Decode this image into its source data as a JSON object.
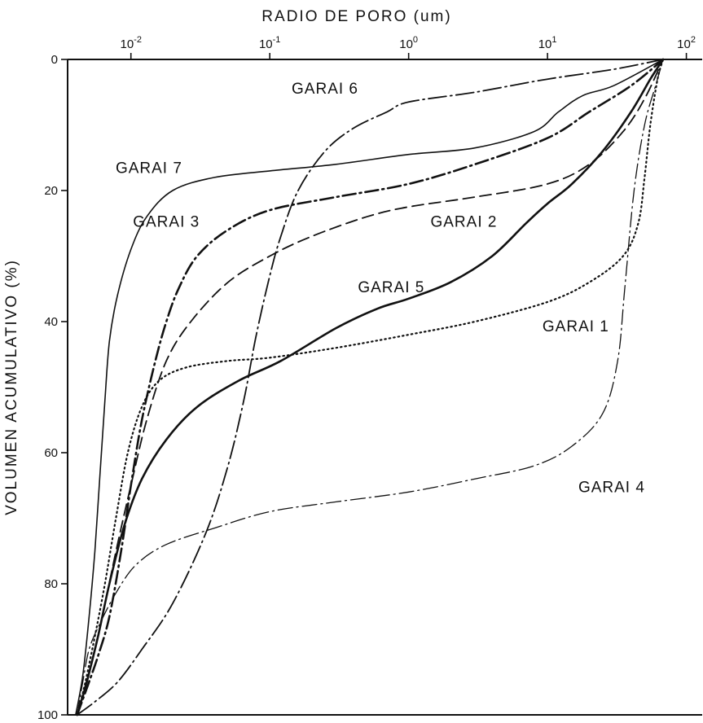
{
  "chart_data": {
    "type": "line",
    "title": "",
    "xlabel": "RADIO DE PORO (um)",
    "ylabel": "VOLUMEN ACUMULATIVO (%)",
    "x_scale": "log",
    "xlim": [
      0.0035,
      130
    ],
    "ylim": [
      0,
      100
    ],
    "y_inverted": true,
    "grid": false,
    "x_ticks": [
      {
        "value": 0.01,
        "base": "10",
        "exp": "-2"
      },
      {
        "value": 0.1,
        "base": "10",
        "exp": "-1"
      },
      {
        "value": 1,
        "base": "10",
        "exp": "0"
      },
      {
        "value": 10,
        "base": "10",
        "exp": "1"
      },
      {
        "value": 100,
        "base": "10",
        "exp": "2"
      }
    ],
    "y_ticks": [
      {
        "value": 0,
        "label": "0"
      },
      {
        "value": 20,
        "label": "20"
      },
      {
        "value": 40,
        "label": "40"
      },
      {
        "value": 60,
        "label": "60"
      },
      {
        "value": 80,
        "label": "80"
      },
      {
        "value": 100,
        "label": "100"
      }
    ],
    "series": [
      {
        "name": "GARAI 1",
        "style": "dotted",
        "label_at": [
          16,
          41.5
        ],
        "points": [
          [
            0.0041,
            100
          ],
          [
            0.0047,
            95
          ],
          [
            0.0055,
            88
          ],
          [
            0.0065,
            80
          ],
          [
            0.0078,
            70
          ],
          [
            0.0095,
            60
          ],
          [
            0.012,
            53
          ],
          [
            0.016,
            49
          ],
          [
            0.025,
            47
          ],
          [
            0.05,
            46
          ],
          [
            0.1,
            45.5
          ],
          [
            0.3,
            44
          ],
          [
            1,
            42
          ],
          [
            3,
            40
          ],
          [
            10,
            37
          ],
          [
            20,
            34
          ],
          [
            35,
            30
          ],
          [
            45,
            25
          ],
          [
            50,
            18
          ],
          [
            55,
            10
          ],
          [
            62,
            3
          ],
          [
            68,
            0
          ]
        ]
      },
      {
        "name": "GARAI 2",
        "style": "dashed",
        "label_at": [
          2.5,
          25.5
        ],
        "points": [
          [
            0.0041,
            100
          ],
          [
            0.0047,
            96
          ],
          [
            0.0055,
            90
          ],
          [
            0.0065,
            83
          ],
          [
            0.008,
            74
          ],
          [
            0.01,
            65
          ],
          [
            0.013,
            55
          ],
          [
            0.018,
            46
          ],
          [
            0.027,
            40
          ],
          [
            0.05,
            34
          ],
          [
            0.1,
            30
          ],
          [
            0.2,
            27
          ],
          [
            0.5,
            24
          ],
          [
            1,
            22.5
          ],
          [
            3,
            21
          ],
          [
            10,
            19
          ],
          [
            20,
            16
          ],
          [
            35,
            11
          ],
          [
            50,
            6
          ],
          [
            68,
            0
          ]
        ]
      },
      {
        "name": "GARAI 3",
        "style": "dashdot",
        "label_at": [
          0.018,
          25.5
        ],
        "points": [
          [
            0.0041,
            100
          ],
          [
            0.0048,
            96
          ],
          [
            0.0058,
            91
          ],
          [
            0.007,
            85
          ],
          [
            0.0085,
            75
          ],
          [
            0.01,
            65
          ],
          [
            0.012,
            55
          ],
          [
            0.015,
            46
          ],
          [
            0.018,
            40
          ],
          [
            0.022,
            35
          ],
          [
            0.03,
            30
          ],
          [
            0.05,
            26
          ],
          [
            0.1,
            23
          ],
          [
            0.3,
            21
          ],
          [
            1,
            19
          ],
          [
            3,
            16
          ],
          [
            10,
            12
          ],
          [
            20,
            8
          ],
          [
            40,
            4
          ],
          [
            68,
            0
          ]
        ]
      },
      {
        "name": "GARAI 4",
        "style": "dashdot-thin",
        "label_at": [
          29,
          66
        ],
        "points": [
          [
            0.0041,
            100
          ],
          [
            0.0045,
            95
          ],
          [
            0.005,
            90
          ],
          [
            0.006,
            86
          ],
          [
            0.008,
            81
          ],
          [
            0.011,
            77
          ],
          [
            0.018,
            74
          ],
          [
            0.04,
            71.5
          ],
          [
            0.1,
            69
          ],
          [
            0.3,
            67.5
          ],
          [
            1,
            66
          ],
          [
            3,
            64
          ],
          [
            8,
            62
          ],
          [
            15,
            59
          ],
          [
            25,
            54
          ],
          [
            32,
            46
          ],
          [
            36,
            35
          ],
          [
            42,
            20
          ],
          [
            50,
            10
          ],
          [
            60,
            4
          ],
          [
            68,
            0
          ]
        ]
      },
      {
        "name": "GARAI 5",
        "style": "solid-bold",
        "label_at": [
          0.75,
          35.5
        ],
        "points": [
          [
            0.0041,
            100
          ],
          [
            0.0048,
            95
          ],
          [
            0.0058,
            88
          ],
          [
            0.007,
            80
          ],
          [
            0.009,
            71
          ],
          [
            0.012,
            64
          ],
          [
            0.018,
            58
          ],
          [
            0.03,
            53
          ],
          [
            0.06,
            49
          ],
          [
            0.12,
            46
          ],
          [
            0.3,
            41
          ],
          [
            0.6,
            38
          ],
          [
            1,
            36.5
          ],
          [
            2,
            34
          ],
          [
            4,
            30
          ],
          [
            7,
            25
          ],
          [
            10,
            22
          ],
          [
            15,
            19
          ],
          [
            25,
            14
          ],
          [
            40,
            8
          ],
          [
            55,
            3
          ],
          [
            68,
            0
          ]
        ]
      },
      {
        "name": "GARAI 6",
        "style": "dashdot-long",
        "label_at": [
          0.25,
          5.2
        ],
        "points": [
          [
            0.0041,
            100
          ],
          [
            0.0055,
            98
          ],
          [
            0.008,
            95
          ],
          [
            0.012,
            90
          ],
          [
            0.02,
            83
          ],
          [
            0.035,
            72
          ],
          [
            0.05,
            62
          ],
          [
            0.065,
            52
          ],
          [
            0.08,
            42
          ],
          [
            0.1,
            33
          ],
          [
            0.12,
            27
          ],
          [
            0.16,
            20
          ],
          [
            0.25,
            14
          ],
          [
            0.4,
            10.5
          ],
          [
            0.7,
            8
          ],
          [
            1,
            6.5
          ],
          [
            3,
            5
          ],
          [
            10,
            3
          ],
          [
            30,
            1.5
          ],
          [
            68,
            0
          ]
        ]
      },
      {
        "name": "GARAI 7",
        "style": "solid",
        "label_at": [
          0.0135,
          17.3
        ],
        "points": [
          [
            0.004,
            100
          ],
          [
            0.0045,
            94
          ],
          [
            0.005,
            85
          ],
          [
            0.0055,
            75
          ],
          [
            0.006,
            63
          ],
          [
            0.0065,
            52
          ],
          [
            0.007,
            43
          ],
          [
            0.008,
            36
          ],
          [
            0.01,
            29
          ],
          [
            0.013,
            24
          ],
          [
            0.02,
            20
          ],
          [
            0.04,
            18
          ],
          [
            0.1,
            17
          ],
          [
            0.3,
            16
          ],
          [
            1,
            14.5
          ],
          [
            3,
            13.5
          ],
          [
            8,
            11
          ],
          [
            12,
            8
          ],
          [
            18,
            5.5
          ],
          [
            30,
            4
          ],
          [
            68,
            0
          ]
        ]
      }
    ]
  }
}
